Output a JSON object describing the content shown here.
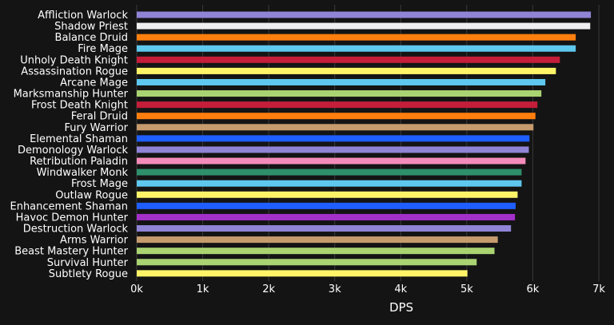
{
  "chart_data": {
    "type": "bar",
    "orientation": "horizontal",
    "title": "",
    "xlabel": "DPS",
    "ylabel": "",
    "xlim": [
      0,
      7000
    ],
    "xticks": [
      0,
      1000,
      2000,
      3000,
      4000,
      5000,
      6000,
      7000
    ],
    "xtick_labels": [
      "0k",
      "1k",
      "2k",
      "3k",
      "4k",
      "5k",
      "6k",
      "7k"
    ],
    "grid": true,
    "categories": [
      {
        "name": "Affliction Warlock",
        "value": 6880,
        "color": "#8f84d6"
      },
      {
        "name": "Shadow Priest",
        "value": 6870,
        "color": "#f0f0f0"
      },
      {
        "name": "Balance Druid",
        "value": 6650,
        "color": "#ff7f0e"
      },
      {
        "name": "Fire Mage",
        "value": 6650,
        "color": "#5ec8ee"
      },
      {
        "name": "Unholy Death Knight",
        "value": 6410,
        "color": "#c41e3a"
      },
      {
        "name": "Assassination Rogue",
        "value": 6350,
        "color": "#fff468"
      },
      {
        "name": "Arcane Mage",
        "value": 6190,
        "color": "#5ec8ee"
      },
      {
        "name": "Marksmanship Hunter",
        "value": 6130,
        "color": "#aad372"
      },
      {
        "name": "Frost Death Knight",
        "value": 6070,
        "color": "#c41e3a"
      },
      {
        "name": "Feral Druid",
        "value": 6040,
        "color": "#ff7f0e"
      },
      {
        "name": "Fury Warrior",
        "value": 6010,
        "color": "#c69b6d"
      },
      {
        "name": "Elemental Shaman",
        "value": 5950,
        "color": "#1f5eff"
      },
      {
        "name": "Demonology Warlock",
        "value": 5940,
        "color": "#8f84d6"
      },
      {
        "name": "Retribution Paladin",
        "value": 5890,
        "color": "#f48cba"
      },
      {
        "name": "Windwalker Monk",
        "value": 5830,
        "color": "#2e8f6b"
      },
      {
        "name": "Frost Mage",
        "value": 5830,
        "color": "#5ec8ee"
      },
      {
        "name": "Outlaw Rogue",
        "value": 5770,
        "color": "#fff468"
      },
      {
        "name": "Enhancement Shaman",
        "value": 5740,
        "color": "#1f5eff"
      },
      {
        "name": "Havoc Demon Hunter",
        "value": 5730,
        "color": "#a330c9"
      },
      {
        "name": "Destruction Warlock",
        "value": 5670,
        "color": "#8f84d6"
      },
      {
        "name": "Arms Warrior",
        "value": 5470,
        "color": "#c69b6d"
      },
      {
        "name": "Beast Mastery Hunter",
        "value": 5420,
        "color": "#aad372"
      },
      {
        "name": "Survival Hunter",
        "value": 5150,
        "color": "#aad372"
      },
      {
        "name": "Subtlety Rogue",
        "value": 5010,
        "color": "#fff468"
      }
    ],
    "colors": {
      "background": "#141414",
      "grid": "#3a3a3a",
      "text": "#ffffff"
    }
  }
}
